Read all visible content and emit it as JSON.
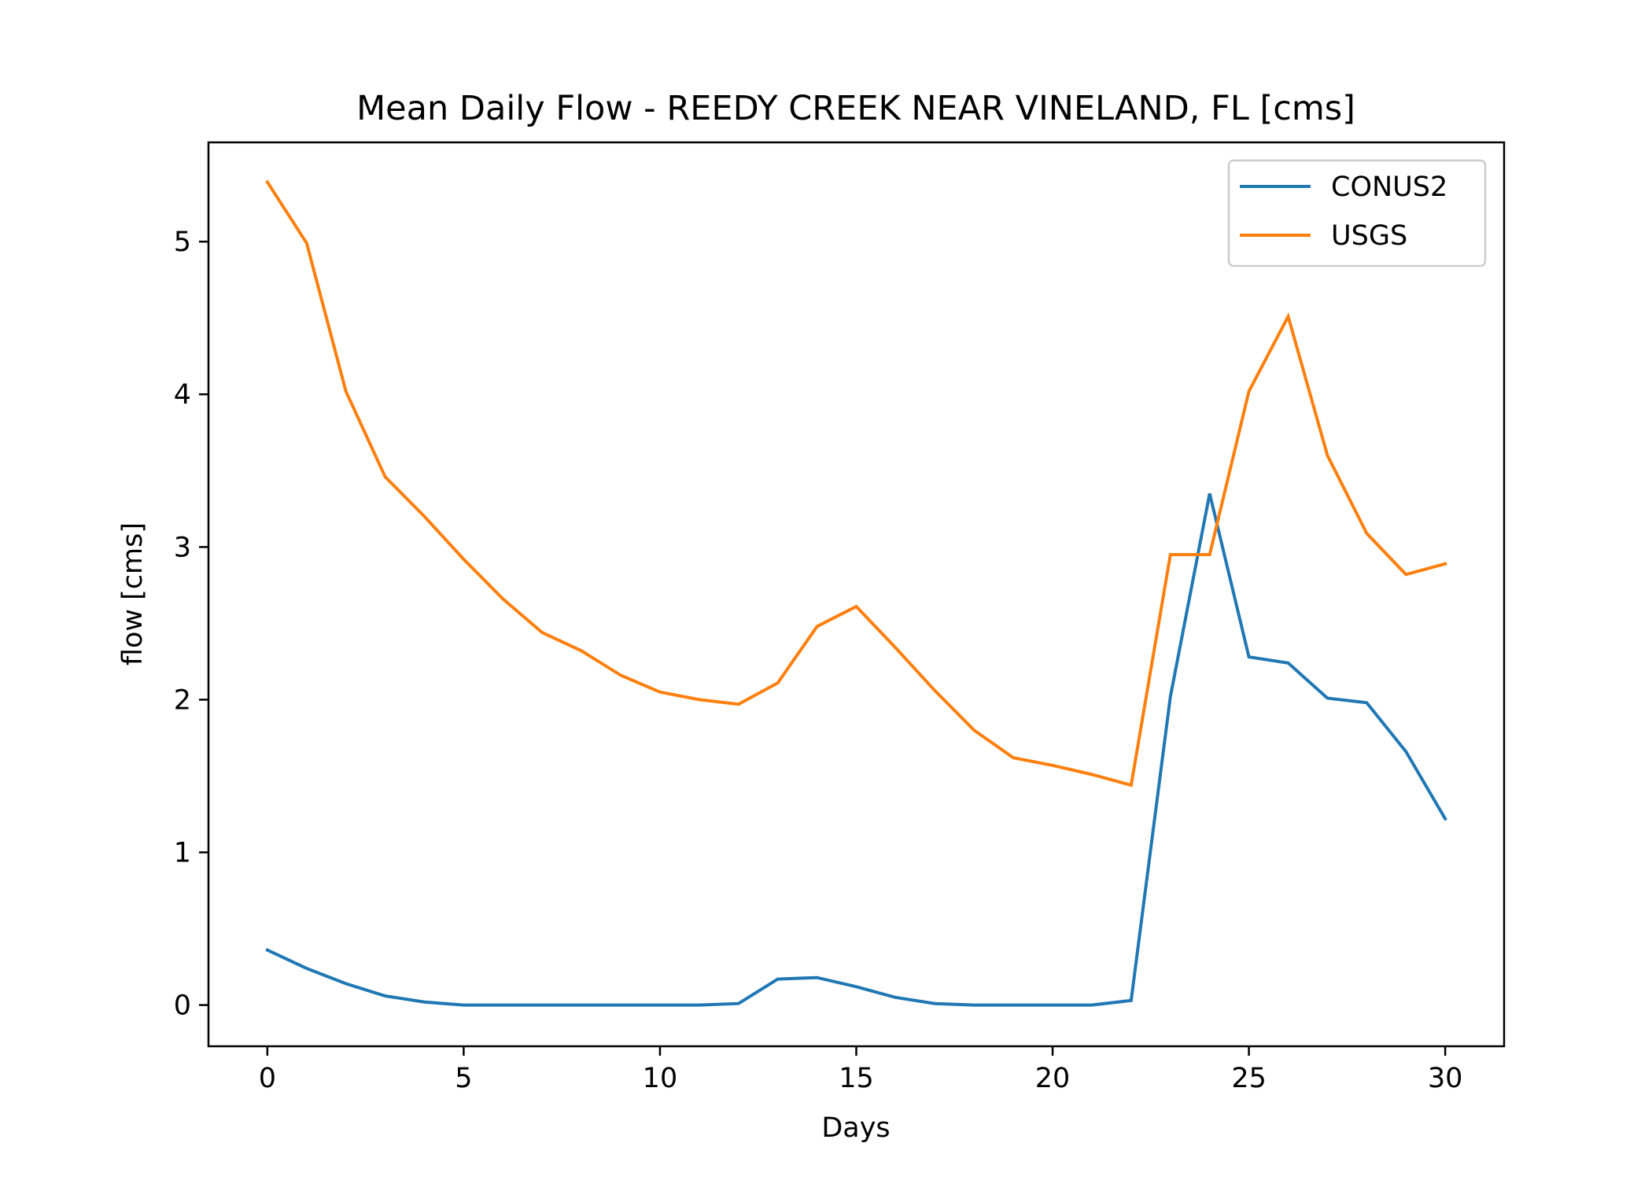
{
  "chart_data": {
    "type": "line",
    "title": "Mean Daily Flow - REEDY CREEK NEAR VINELAND, FL [cms]",
    "xlabel": "Days",
    "ylabel": "flow [cms]",
    "xlim": [
      -1.5,
      31.5
    ],
    "ylim": [
      -0.27,
      5.65
    ],
    "xticks": [
      0,
      5,
      10,
      15,
      20,
      25,
      30
    ],
    "yticks": [
      0,
      1,
      2,
      3,
      4,
      5
    ],
    "grid": false,
    "legend_position": "top-right",
    "x": [
      0,
      1,
      2,
      3,
      4,
      5,
      6,
      7,
      8,
      9,
      10,
      11,
      12,
      13,
      14,
      15,
      16,
      17,
      18,
      19,
      20,
      21,
      22,
      23,
      24,
      25,
      26,
      27,
      28,
      29,
      30
    ],
    "series": [
      {
        "name": "CONUS2",
        "color": "#1f77b4",
        "values": [
          0.36,
          0.24,
          0.14,
          0.06,
          0.02,
          0.0,
          0.0,
          0.0,
          0.0,
          0.0,
          0.0,
          0.0,
          0.01,
          0.17,
          0.18,
          0.12,
          0.05,
          0.01,
          0.0,
          0.0,
          0.0,
          0.0,
          0.03,
          2.02,
          3.35,
          2.28,
          2.24,
          2.01,
          1.98,
          1.66,
          1.22
        ]
      },
      {
        "name": "USGS",
        "color": "#ff7f0e",
        "values": [
          5.39,
          4.99,
          4.02,
          3.46,
          3.2,
          2.92,
          2.66,
          2.44,
          2.32,
          2.16,
          2.05,
          2.0,
          1.97,
          2.11,
          2.48,
          2.61,
          2.34,
          2.06,
          1.8,
          1.62,
          1.57,
          1.51,
          1.44,
          2.95,
          2.95,
          4.02,
          4.51,
          3.6,
          3.09,
          2.82,
          2.89
        ]
      }
    ]
  }
}
